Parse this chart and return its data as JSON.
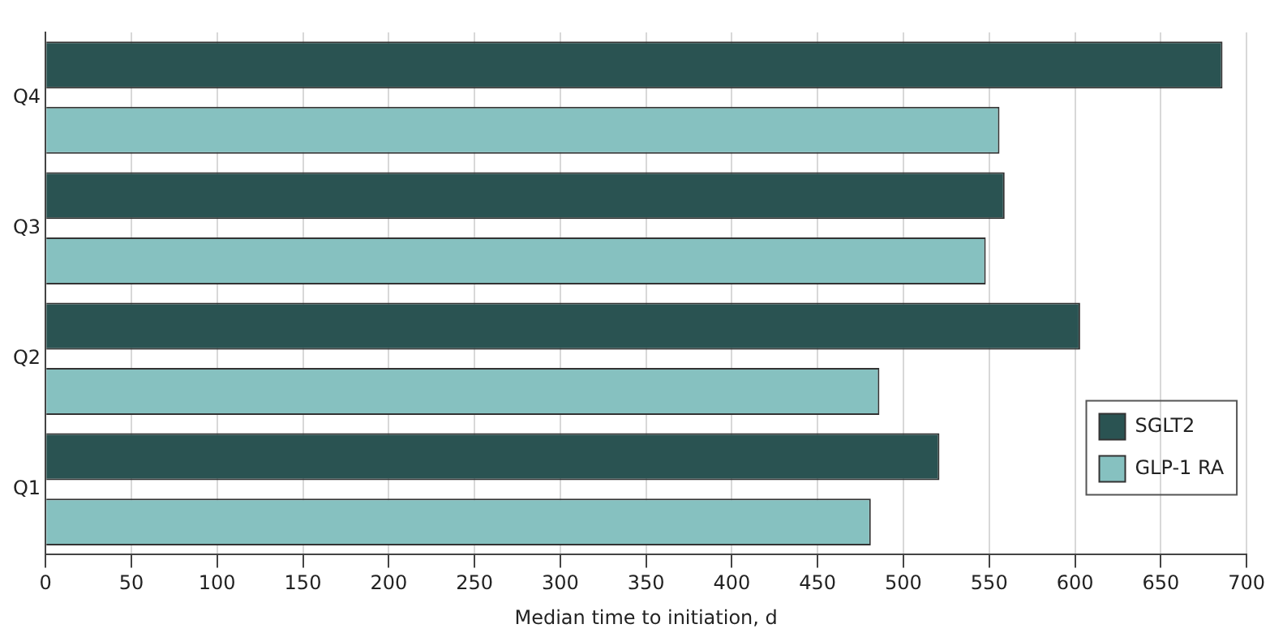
{
  "chart_data": {
    "type": "bar",
    "orientation": "horizontal",
    "xlabel": "Median time to initiation, d",
    "categories": [
      "Q4",
      "Q3",
      "Q2",
      "Q1"
    ],
    "series": [
      {
        "name": "SGLT2",
        "color": "#2a5352",
        "values": [
          686,
          559,
          603,
          521
        ]
      },
      {
        "name": "GLP-1 RA",
        "color": "#86c1c0",
        "values": [
          556,
          548,
          486,
          481
        ]
      }
    ],
    "xlim": [
      0,
      700
    ],
    "xticks": [
      0,
      50,
      100,
      150,
      200,
      250,
      300,
      350,
      400,
      450,
      500,
      550,
      600,
      650,
      700
    ],
    "grid": "x",
    "legend": "bottom right"
  }
}
